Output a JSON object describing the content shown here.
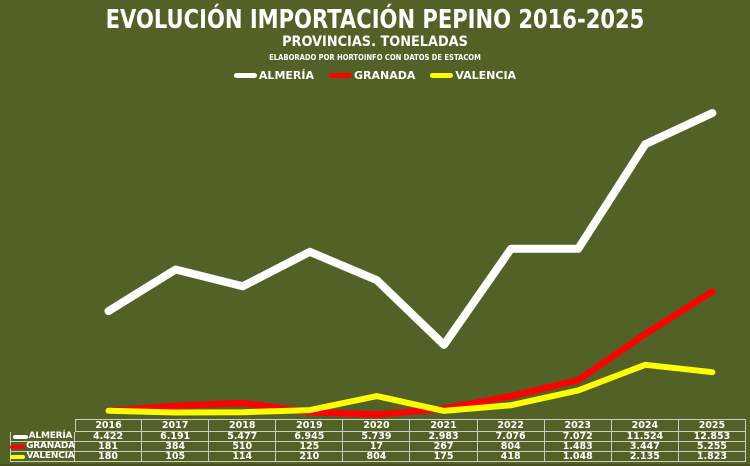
{
  "colors": {
    "background": "#526226",
    "almeria": "#ffffff",
    "granada": "#ff0000",
    "valencia": "#ffff00",
    "table_border": "#e1e1e1",
    "text": "#ffffff"
  },
  "header": {
    "title": "EVOLUCIÓN IMPORTACIÓN PEPINO 2016-2025",
    "subtitle": "PROVINCIAS. TONELADAS",
    "source": "ELABORADO POR HORTOINFO CON DATOS DE ESTACOM"
  },
  "legend": {
    "position": "top",
    "items": [
      {
        "key": "almeria",
        "label": "ALMERÍA",
        "color": "#ffffff"
      },
      {
        "key": "granada",
        "label": "GRANADA",
        "color": "#ff0000"
      },
      {
        "key": "valencia",
        "label": "VALENCIA",
        "color": "#ffff00"
      }
    ]
  },
  "chart_data": {
    "type": "line",
    "title": "EVOLUCIÓN IMPORTACIÓN PEPINO 2016-2025",
    "subtitle": "PROVINCIAS. TONELADAS",
    "x": [
      2016,
      2017,
      2018,
      2019,
      2020,
      2021,
      2022,
      2023,
      2024,
      2025
    ],
    "series": [
      {
        "key": "almeria",
        "name": "ALMERÍA",
        "color": "#ffffff",
        "values": [
          4422,
          6191,
          5477,
          6945,
          5739,
          2983,
          7076,
          7072,
          11524,
          12853
        ]
      },
      {
        "key": "granada",
        "name": "GRANADA",
        "color": "#ff0000",
        "values": [
          181,
          384,
          510,
          125,
          17,
          267,
          804,
          1483,
          3447,
          5255
        ]
      },
      {
        "key": "valencia",
        "name": "VALENCIA",
        "color": "#ffff00",
        "values": [
          180,
          105,
          114,
          210,
          804,
          175,
          418,
          1048,
          2135,
          1823
        ]
      }
    ],
    "ylim": [
      0,
      13000
    ],
    "grid": false,
    "legend_position": "top",
    "units": "toneladas"
  },
  "table": {
    "year_headers": [
      "2016",
      "2017",
      "2018",
      "2019",
      "2020",
      "2021",
      "2022",
      "2023",
      "2024",
      "2025"
    ],
    "rows": [
      {
        "key": "almeria",
        "label": "ALMERÍA",
        "color": "#ffffff",
        "values": [
          "4.422",
          "6.191",
          "5.477",
          "6.945",
          "5.739",
          "2.983",
          "7.076",
          "7.072",
          "11.524",
          "12.853"
        ]
      },
      {
        "key": "granada",
        "label": "GRANADA",
        "color": "#ff0000",
        "values": [
          "181",
          "384",
          "510",
          "125",
          "17",
          "267",
          "804",
          "1.483",
          "3.447",
          "5.255"
        ]
      },
      {
        "key": "valencia",
        "label": "VALENCIA",
        "color": "#ffff00",
        "values": [
          "180",
          "105",
          "114",
          "210",
          "804",
          "175",
          "418",
          "1.048",
          "2.135",
          "1.823"
        ]
      }
    ]
  }
}
